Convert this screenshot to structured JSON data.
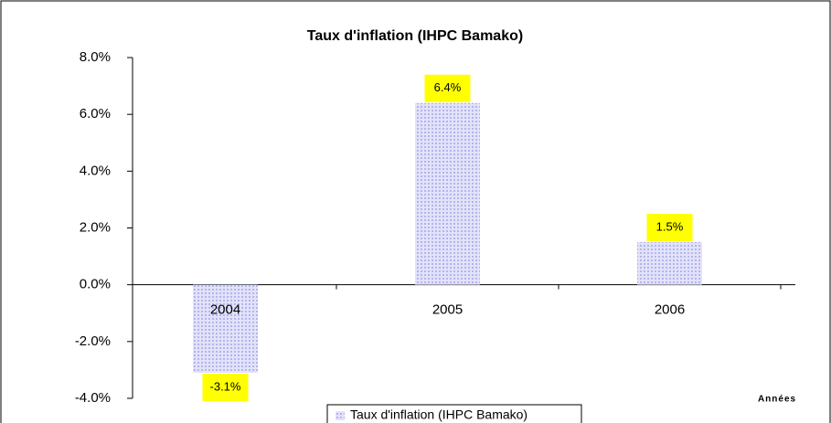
{
  "chart_data": {
    "type": "bar",
    "title": "Taux d'inflation (IHPC Bamako)",
    "x_label": "Années",
    "categories": [
      "2004",
      "2005",
      "2006"
    ],
    "series": [
      {
        "name": "Taux d'inflation (IHPC Bamako)",
        "color": "#c8c8f4",
        "values": [
          -3.1,
          6.4,
          1.5
        ],
        "value_labels": [
          "-3.1%",
          "6.4%",
          "1.5%"
        ]
      }
    ],
    "ylim": [
      -4,
      8
    ],
    "yticks": [
      {
        "value": -4,
        "label": "-4.0%"
      },
      {
        "value": -2,
        "label": "-2.0%"
      },
      {
        "value": 0,
        "label": "0.0%"
      },
      {
        "value": 2,
        "label": "2.0%"
      },
      {
        "value": 4,
        "label": "4.0%"
      },
      {
        "value": 6,
        "label": "6.0%"
      },
      {
        "value": 8,
        "label": "8.0%"
      }
    ],
    "legend": "bottom"
  }
}
